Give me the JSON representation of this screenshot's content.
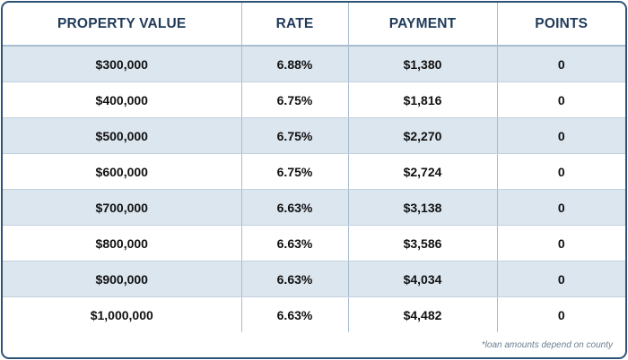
{
  "table": {
    "headers": [
      "PROPERTY VALUE",
      "RATE",
      "PAYMENT",
      "POINTS"
    ],
    "rows": [
      [
        "$300,000",
        "6.88%",
        "$1,380",
        "0"
      ],
      [
        "$400,000",
        "6.75%",
        "$1,816",
        "0"
      ],
      [
        "$500,000",
        "6.75%",
        "$2,270",
        "0"
      ],
      [
        "$600,000",
        "6.75%",
        "$2,724",
        "0"
      ],
      [
        "$700,000",
        "6.63%",
        "$3,138",
        "0"
      ],
      [
        "$800,000",
        "6.63%",
        "$3,586",
        "0"
      ],
      [
        "$900,000",
        "6.63%",
        "$4,034",
        "0"
      ],
      [
        "$1,000,000",
        "6.63%",
        "$4,482",
        "0"
      ]
    ]
  },
  "footnote": "*loan amounts depend on county",
  "colors": {
    "border": "#2c5478",
    "header_text": "#1f3a5a",
    "shaded_row": "#dce6ef",
    "divider": "#a9bcd0"
  }
}
